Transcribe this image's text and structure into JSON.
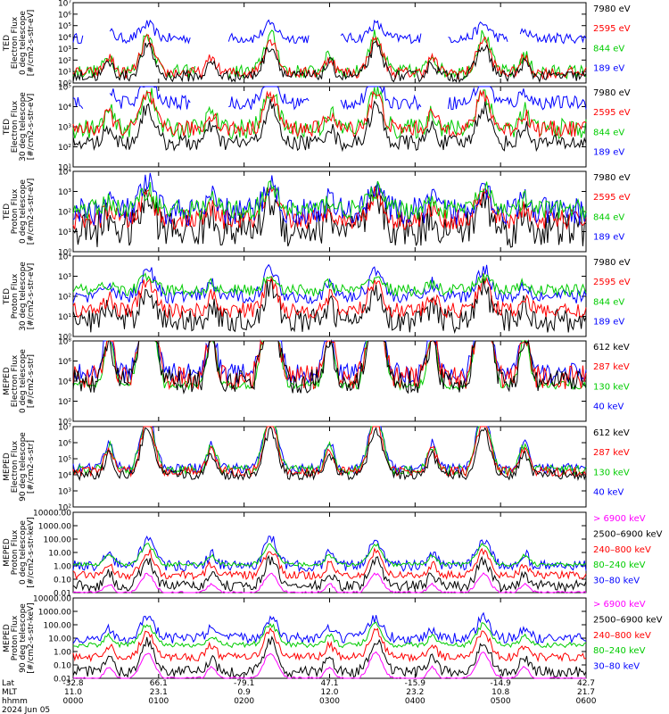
{
  "chart_data": [
    {
      "type": "line",
      "id": "p1",
      "ylabel": [
        "TED",
        "Electron Flux",
        "0 deg telescope",
        "[#/cm2-s-str-eV]"
      ],
      "yticks": [
        "10⁷",
        "10⁶",
        "10⁵",
        "10⁴",
        "10³",
        "10²",
        "10¹",
        "10⁰"
      ],
      "legend": [
        {
          "label": "7980 eV",
          "color": "#000000"
        },
        {
          "label": "2595 eV",
          "color": "#ff0000"
        },
        {
          "label": "844 eV",
          "color": "#00cc00"
        },
        {
          "label": "189 eV",
          "color": "#0000ff"
        }
      ],
      "series": [
        {
          "name": "189 eV",
          "color": "#0000ff",
          "base": 3.9,
          "noise": 0.45,
          "peak": 5.1,
          "gaps": [
            [
              0.02,
              0.07
            ],
            [
              0.23,
              0.3
            ],
            [
              0.46,
              0.52
            ],
            [
              0.68,
              0.73
            ],
            [
              0.85,
              0.87
            ]
          ]
        },
        {
          "name": "844 eV",
          "color": "#00cc00",
          "base": 1.0,
          "noise": 0.6,
          "peak": 4.2,
          "gaps": [
            [
              0.24,
              0.3
            ]
          ]
        },
        {
          "name": "2595 eV",
          "color": "#ff0000",
          "base": 0.9,
          "noise": 0.5,
          "peak": 3.8,
          "gaps": []
        },
        {
          "name": "7980 eV",
          "color": "#000000",
          "base": 0.6,
          "noise": 0.5,
          "peak": 3.2,
          "gaps": []
        }
      ]
    },
    {
      "type": "line",
      "id": "p2",
      "ylabel": [
        "TED",
        "Electron Flux",
        "30 deg telescope",
        "[#/cm2-s-str-eV]"
      ],
      "yticks": [
        "10⁵",
        "10⁴",
        "10³",
        "10²",
        "10¹"
      ],
      "legend": [
        {
          "label": "7980 eV",
          "color": "#000000"
        },
        {
          "label": "2595 eV",
          "color": "#ff0000"
        },
        {
          "label": "844 eV",
          "color": "#00cc00"
        },
        {
          "label": "189 eV",
          "color": "#0000ff"
        }
      ],
      "series": [
        {
          "name": "189 eV",
          "color": "#0000ff",
          "base": 3.2,
          "noise": 0.35,
          "peak": 4.5,
          "gaps": [
            [
              0.02,
              0.07
            ],
            [
              0.23,
              0.3
            ],
            [
              0.46,
              0.52
            ],
            [
              0.68,
              0.73
            ]
          ]
        },
        {
          "name": "844 eV",
          "color": "#00cc00",
          "base": 1.9,
          "noise": 0.5,
          "peak": 3.8,
          "gaps": []
        },
        {
          "name": "2595 eV",
          "color": "#ff0000",
          "base": 1.9,
          "noise": 0.4,
          "peak": 3.6,
          "gaps": []
        },
        {
          "name": "7980 eV",
          "color": "#000000",
          "base": 1.2,
          "noise": 0.4,
          "peak": 3.0,
          "gaps": []
        }
      ]
    },
    {
      "type": "line",
      "id": "p3",
      "ylabel": [
        "TED",
        "Proton Flux",
        "0 deg telescope",
        "[#/cm2-s-str-eV]"
      ],
      "yticks": [
        "10⁴",
        "10³",
        "10²",
        "10¹",
        "10⁰"
      ],
      "legend": [
        {
          "label": "7980 eV",
          "color": "#000000"
        },
        {
          "label": "2595 eV",
          "color": "#ff0000"
        },
        {
          "label": "844 eV",
          "color": "#00cc00"
        },
        {
          "label": "189 eV",
          "color": "#0000ff"
        }
      ],
      "series": [
        {
          "name": "7980 eV",
          "color": "#000000",
          "base": 1.1,
          "noise": 0.9,
          "peak": 2.6,
          "gaps": []
        },
        {
          "name": "2595 eV",
          "color": "#ff0000",
          "base": 1.6,
          "noise": 0.5,
          "peak": 2.9,
          "gaps": []
        },
        {
          "name": "189 eV",
          "color": "#0000ff",
          "base": 2.0,
          "noise": 0.7,
          "peak": 3.4,
          "gaps": []
        },
        {
          "name": "844 eV",
          "color": "#00cc00",
          "base": 2.1,
          "noise": 0.5,
          "peak": 3.1,
          "gaps": []
        }
      ]
    },
    {
      "type": "line",
      "id": "p4",
      "ylabel": [
        "TED",
        "Proton Flux",
        "30 deg telescope",
        "[#/cm2-s-str-eV]"
      ],
      "yticks": [
        "10⁴",
        "10³",
        "10²",
        "10¹",
        "10⁰"
      ],
      "legend": [
        {
          "label": "7980 eV",
          "color": "#000000"
        },
        {
          "label": "2595 eV",
          "color": "#ff0000"
        },
        {
          "label": "844 eV",
          "color": "#00cc00"
        },
        {
          "label": "189 eV",
          "color": "#0000ff"
        }
      ],
      "series": [
        {
          "name": "189 eV",
          "color": "#0000ff",
          "base": 2.0,
          "noise": 0.35,
          "peak": 3.4,
          "gaps": []
        },
        {
          "name": "7980 eV",
          "color": "#000000",
          "base": 0.8,
          "noise": 0.6,
          "peak": 2.4,
          "gaps": []
        },
        {
          "name": "2595 eV",
          "color": "#ff0000",
          "base": 1.3,
          "noise": 0.4,
          "peak": 2.8,
          "gaps": []
        },
        {
          "name": "844 eV",
          "color": "#00cc00",
          "base": 2.3,
          "noise": 0.3,
          "peak": 3.0,
          "gaps": []
        }
      ]
    },
    {
      "type": "line",
      "id": "p5",
      "ylabel": [
        "MEPED",
        "Electron Flux",
        "0 deg telescope",
        "[#/cm2-s-str]"
      ],
      "yticks": [
        "10⁸",
        "10⁶",
        "10⁴",
        "10²",
        "10⁰"
      ],
      "legend": [
        {
          "label": "612 keV",
          "color": "#000000"
        },
        {
          "label": "287 keV",
          "color": "#ff0000"
        },
        {
          "label": "130 keV",
          "color": "#00cc00"
        },
        {
          "label": "40 keV",
          "color": "#0000ff"
        }
      ],
      "series": [
        {
          "name": "40 keV",
          "color": "#0000ff",
          "base": 2.4,
          "noise": 0.5,
          "peak": 8.0,
          "gaps": []
        },
        {
          "name": "130 keV",
          "color": "#00cc00",
          "base": 1.8,
          "noise": 0.2,
          "peak": 7.6,
          "gaps": []
        },
        {
          "name": "287 keV",
          "color": "#ff0000",
          "base": 2.2,
          "noise": 0.6,
          "peak": 7.2,
          "gaps": []
        },
        {
          "name": "612 keV",
          "color": "#000000",
          "base": 2.0,
          "noise": 0.6,
          "peak": 6.8,
          "gaps": []
        }
      ]
    },
    {
      "type": "line",
      "id": "p6",
      "ylabel": [
        "MEPED",
        "Electron Flux",
        "90 deg telescope",
        "[#/cm2-s-str]"
      ],
      "yticks": [
        "10⁷",
        "10⁶",
        "10⁵",
        "10⁴",
        "10³",
        "10²"
      ],
      "legend": [
        {
          "label": "612 keV",
          "color": "#000000"
        },
        {
          "label": "287 keV",
          "color": "#ff0000"
        },
        {
          "label": "130 keV",
          "color": "#00cc00"
        },
        {
          "label": "40 keV",
          "color": "#0000ff"
        }
      ],
      "series": [
        {
          "name": "40 keV",
          "color": "#0000ff",
          "base": 2.4,
          "noise": 0.3,
          "peak": 6.0,
          "gaps": []
        },
        {
          "name": "130 keV",
          "color": "#00cc00",
          "base": 2.3,
          "noise": 0.3,
          "peak": 5.8,
          "gaps": []
        },
        {
          "name": "287 keV",
          "color": "#ff0000",
          "base": 2.2,
          "noise": 0.3,
          "peak": 5.4,
          "gaps": []
        },
        {
          "name": "612 keV",
          "color": "#000000",
          "base": 2.0,
          "noise": 0.3,
          "peak": 4.8,
          "gaps": []
        }
      ]
    },
    {
      "type": "line",
      "id": "p7",
      "ylabel": [
        "MEPED",
        "Proton Flux",
        "0 deg telescope",
        "[#/cm2-s-str-keV]"
      ],
      "yticks": [
        "10000.00",
        "1000.00",
        "100.00",
        "10.00",
        "1.00",
        "0.10",
        "0.01"
      ],
      "legend": [
        {
          "label": "> 6900 keV",
          "color": "#ff00ff"
        },
        {
          "label": "2500–6900 keV",
          "color": "#000000"
        },
        {
          "label": "240–800 keV",
          "color": "#ff0000"
        },
        {
          "label": "80–240 keV",
          "color": "#00cc00"
        },
        {
          "label": "30–80 keV",
          "color": "#0000ff"
        }
      ],
      "series": [
        {
          "name": "30-80 keV",
          "color": "#0000ff",
          "base": 2.0,
          "noise": 0.4,
          "peak": 4.0,
          "gaps": []
        },
        {
          "name": "80-240 keV",
          "color": "#00cc00",
          "base": 2.1,
          "noise": 0.15,
          "peak": 3.6,
          "gaps": []
        },
        {
          "name": "240-800 keV",
          "color": "#ff0000",
          "base": 1.3,
          "noise": 0.3,
          "peak": 3.1,
          "gaps": []
        },
        {
          "name": "2500-6900 keV",
          "color": "#000000",
          "base": 0.5,
          "noise": 0.4,
          "peak": 2.4,
          "gaps": []
        },
        {
          "name": "> 6900 keV",
          "color": "#ff00ff",
          "base": 0.0,
          "noise": 0.1,
          "peak": 1.4,
          "gaps": []
        }
      ]
    },
    {
      "type": "line",
      "id": "p8",
      "ylabel": [
        "MEPED",
        "Proton Flux",
        "90 deg telescope",
        "[#/cm2-s-str-keV]"
      ],
      "yticks": [
        "10000.00",
        "1000.00",
        "100.00",
        "10.00",
        "1.00",
        "0.10",
        "0.01"
      ],
      "legend": [
        {
          "label": "> 6900 keV",
          "color": "#ff00ff"
        },
        {
          "label": "2500–6900 keV",
          "color": "#000000"
        },
        {
          "label": "240–800 keV",
          "color": "#ff0000"
        },
        {
          "label": "80–240 keV",
          "color": "#00cc00"
        },
        {
          "label": "30–80 keV",
          "color": "#0000ff"
        }
      ],
      "series": [
        {
          "name": "30-80 keV",
          "color": "#0000ff",
          "base": 3.0,
          "noise": 0.4,
          "peak": 4.5,
          "gaps": []
        },
        {
          "name": "80-240 keV",
          "color": "#00cc00",
          "base": 2.5,
          "noise": 0.2,
          "peak": 4.0,
          "gaps": []
        },
        {
          "name": "240-800 keV",
          "color": "#ff0000",
          "base": 1.6,
          "noise": 0.3,
          "peak": 3.5,
          "gaps": []
        },
        {
          "name": "2500-6900 keV",
          "color": "#000000",
          "base": 0.5,
          "noise": 0.4,
          "peak": 2.8,
          "gaps": []
        },
        {
          "name": "> 6900 keV",
          "color": "#ff00ff",
          "base": 0.0,
          "noise": 0.1,
          "peak": 1.9,
          "gaps": []
        }
      ]
    }
  ],
  "passes": [
    0.145,
    0.385,
    0.59,
    0.8
  ],
  "xaxis": {
    "row_labels": [
      "Lat",
      "MLT",
      "hhmm",
      "2024 Jun 05"
    ],
    "ticks": [
      {
        "lat": "-32.8",
        "mlt": "11.0",
        "hhmm": "0000"
      },
      {
        "lat": "66.1",
        "mlt": "23.1",
        "hhmm": "0100"
      },
      {
        "lat": "-79.1",
        "mlt": "0.9",
        "hhmm": "0200"
      },
      {
        "lat": "47.1",
        "mlt": "12.0",
        "hhmm": "0300"
      },
      {
        "lat": "-15.9",
        "mlt": "23.2",
        "hhmm": "0400"
      },
      {
        "lat": "-14.9",
        "mlt": "10.8",
        "hhmm": "0500"
      },
      {
        "lat": "42.7",
        "mlt": "21.7",
        "hhmm": "0600"
      }
    ]
  }
}
